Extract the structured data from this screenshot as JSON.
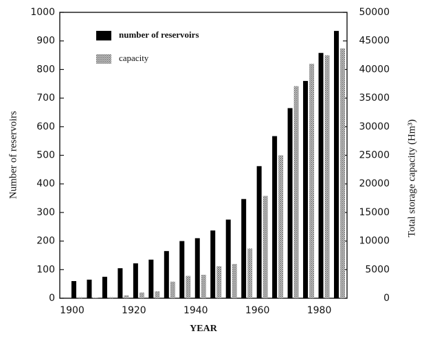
{
  "chart_data": {
    "type": "bar",
    "x": [
      1900,
      1905,
      1910,
      1915,
      1920,
      1925,
      1930,
      1935,
      1940,
      1945,
      1950,
      1955,
      1960,
      1965,
      1970,
      1975,
      1980,
      1985
    ],
    "series": [
      {
        "name": "number of reservoirs",
        "color": "#000000",
        "values": [
          60,
          65,
          75,
          105,
          122,
          135,
          165,
          200,
          210,
          237,
          275,
          347,
          462,
          567,
          665,
          760,
          858,
          935
        ]
      },
      {
        "name": "capacity",
        "color": "#777777",
        "axis": "y2",
        "values": [
          200,
          100,
          200,
          500,
          1000,
          1200,
          2900,
          3900,
          4100,
          5600,
          6000,
          8700,
          17900,
          25000,
          37100,
          41000,
          42500,
          43700
        ]
      }
    ],
    "xlabel": "YEAR",
    "ylabel": "Number of reservoirs",
    "y2label": "Total storage capacity (Hm³)",
    "xlim": [
      1896,
      1989
    ],
    "xticks": [
      1900,
      1920,
      1940,
      1960,
      1980
    ],
    "ylim": [
      0,
      1000
    ],
    "yticks": [
      0,
      100,
      200,
      300,
      400,
      500,
      600,
      700,
      800,
      900,
      1000
    ],
    "y2lim": [
      0,
      50000
    ],
    "y2ticks": [
      0,
      5000,
      10000,
      15000,
      20000,
      25000,
      30000,
      35000,
      40000,
      45000,
      50000
    ],
    "legend": "upper left"
  }
}
